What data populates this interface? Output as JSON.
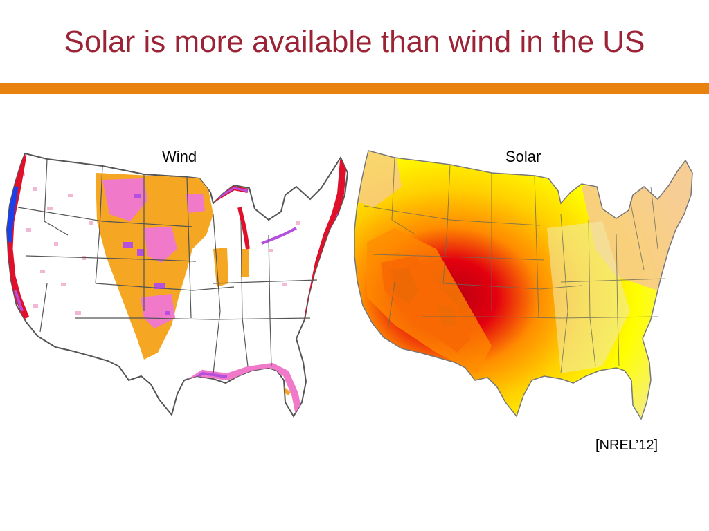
{
  "slide": {
    "title": "Solar is more available than wind in the US",
    "title_color": "#9b2335",
    "accent_bar_color": "#e8820c"
  },
  "maps": [
    {
      "label": "Wind",
      "legend_colors": [
        "#ffffff",
        "#f5a623",
        "#f07ac9",
        "#b44fe0",
        "#e0102a",
        "#1b3fe8"
      ]
    },
    {
      "label": "Solar",
      "legend_colors": [
        "#f2e9a6",
        "#f7c891",
        "#ffff00",
        "#ffd000",
        "#ff8c00",
        "#e3000f",
        "#b50010"
      ]
    }
  ],
  "citation": "[NREL’12]"
}
